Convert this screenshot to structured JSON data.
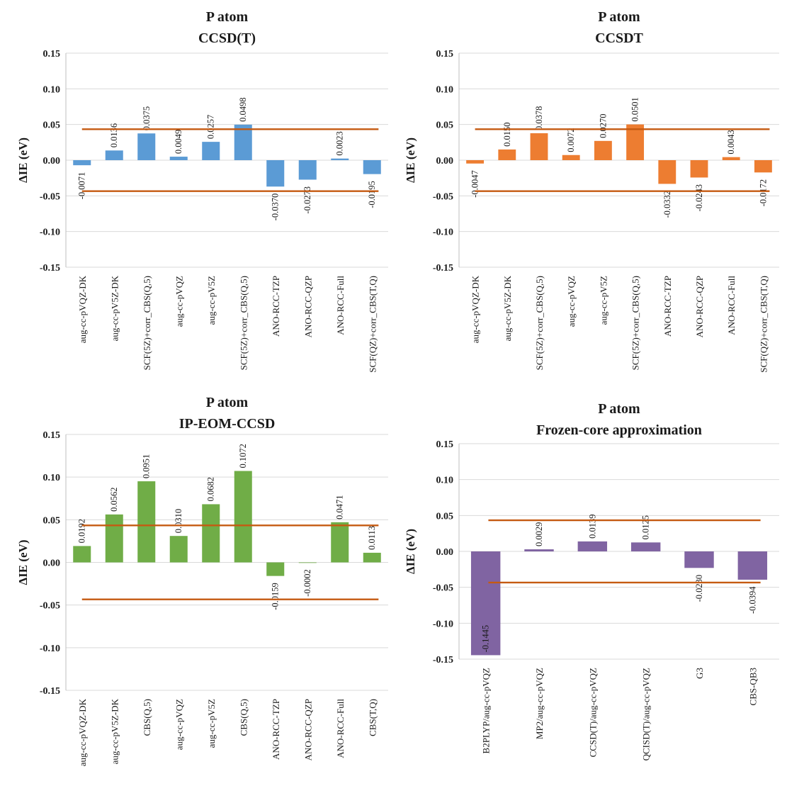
{
  "threshold_color": "#C55A11",
  "chart_data": [
    {
      "type": "bar",
      "title": "P atom",
      "subtitle": "CCSD(T)",
      "ylabel": "ΔIE (eV)",
      "ylim": [
        -0.15,
        0.15
      ],
      "yticks": [
        "-0.15",
        "-0.10",
        "-0.05",
        "0.00",
        "0.05",
        "0.10",
        "0.15"
      ],
      "grid": true,
      "color": "#5B9BD5",
      "categories": [
        "aug-cc-pVQZ-DK",
        "aug-cc-pV5Z-DK",
        "SCF(5Z)+corr_CBS(Q,5)",
        "aug-cc-pVQZ",
        "aug-cc-pV5Z",
        "SCF(5Z)+corr_CBS(Q,5)",
        "ANO-RCC-TZP",
        "ANO-RCC-QZP",
        "ANO-RCC-Full",
        "SCF(QZ)+corr_CBS(T,Q)"
      ],
      "values": [
        -0.0071,
        0.0136,
        0.0375,
        0.0049,
        0.0257,
        0.0498,
        -0.037,
        -0.0273,
        0.0023,
        -0.0195
      ],
      "labels": [
        "-0.0071",
        "0.0136",
        "0.0375",
        "0.0049",
        "0.0257",
        "0.0498",
        "-0.0370",
        "-0.0273",
        "0.0023",
        "-0.0195"
      ],
      "threshold_lines": [
        0.0434,
        -0.0434
      ]
    },
    {
      "type": "bar",
      "title": "P atom",
      "subtitle": "CCSDT",
      "ylabel": "ΔIE (eV)",
      "ylim": [
        -0.15,
        0.15
      ],
      "yticks": [
        "-0.15",
        "-0.10",
        "-0.05",
        "0.00",
        "0.05",
        "0.10",
        "0.15"
      ],
      "grid": true,
      "color": "#ED7D31",
      "categories": [
        "aug-cc-pVQZ-DK",
        "aug-cc-pV5Z-DK",
        "SCF(5Z)+corr_CBS(Q,5)",
        "aug-cc-pVQZ",
        "aug-cc-pV5Z",
        "SCF(5Z)+corr_CBS(Q,5)",
        "ANO-RCC-TZP",
        "ANO-RCC-QZP",
        "ANO-RCC-Full",
        "SCF(QZ)+corr_CBS(T,Q)"
      ],
      "values": [
        -0.0047,
        0.015,
        0.0378,
        0.0072,
        0.027,
        0.0501,
        -0.0332,
        -0.0243,
        0.0043,
        -0.0172
      ],
      "labels": [
        "-0.0047",
        "0.0150",
        "0.0378",
        "0.0072",
        "0.0270",
        "0.0501",
        "-0.0332",
        "-0.0243",
        "0.0043",
        "-0.0172"
      ],
      "threshold_lines": [
        0.0434,
        -0.0434
      ]
    },
    {
      "type": "bar",
      "title": "P atom",
      "subtitle": "IP-EOM-CCSD",
      "ylabel": "ΔIE (eV)",
      "ylim": [
        -0.15,
        0.15
      ],
      "yticks": [
        "-0.15",
        "-0.10",
        "-0.05",
        "0.00",
        "0.05",
        "0.10",
        "0.15"
      ],
      "grid": true,
      "color": "#70AD47",
      "categories": [
        "aug-cc-pVQZ-DK",
        "aug-cc-pV5Z-DK",
        "CBS(Q,5)",
        "aug-cc-pVQZ",
        "aug-cc-pV5Z",
        "CBS(Q,5)",
        "ANO-RCC-TZP",
        "ANO-RCC-QZP",
        "ANO-RCC-Full",
        "CBS(T,Q)"
      ],
      "values": [
        0.0192,
        0.0562,
        0.0951,
        0.031,
        0.0682,
        0.1072,
        -0.0159,
        -0.0002,
        0.0471,
        0.0113
      ],
      "labels": [
        "0.0192",
        "0.0562",
        "0.0951",
        "0.0310",
        "0.0682",
        "0.1072",
        "-0.0159",
        "-0.0002",
        "0.0471",
        "0.0113"
      ],
      "threshold_lines": [
        0.0434,
        -0.0434
      ]
    },
    {
      "type": "bar",
      "title": "P atom",
      "subtitle": "Frozen-core approximation",
      "ylabel": "ΔIE (eV)",
      "ylim": [
        -0.15,
        0.15
      ],
      "yticks": [
        "-0.15",
        "-0.10",
        "-0.05",
        "0.00",
        "0.05",
        "0.10",
        "0.15"
      ],
      "grid": true,
      "color": "#8064A2",
      "categories": [
        "B2PLYP/aug-cc-pVQZ",
        "MP2/aug-cc-pVQZ",
        "CCSD(T)/aug-cc-pVQZ",
        "QCISD(T)/aug-cc-pVQZ",
        "G3",
        "CBS-QB3"
      ],
      "values": [
        -0.1445,
        0.0029,
        0.0139,
        0.0125,
        -0.023,
        -0.0394
      ],
      "labels": [
        "-0.1445",
        "0.0029",
        "0.0139",
        "0.0125",
        "-0.0230",
        "-0.0394"
      ],
      "threshold_lines": [
        0.0434,
        -0.0434
      ]
    }
  ]
}
